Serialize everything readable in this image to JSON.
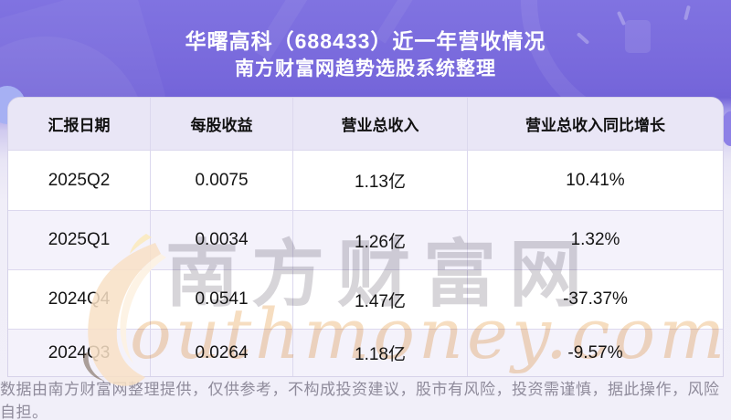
{
  "header": {
    "title": "华曙高科（688433）近一年营收情况",
    "subtitle": "南方财富网趋势选股系统整理"
  },
  "chart_data": {
    "type": "table",
    "title": "华曙高科（688433）近一年营收情况",
    "subtitle": "南方财富网趋势选股系统整理",
    "columns": [
      "汇报日期",
      "每股收益",
      "营业总收入",
      "营业总收入同比增长"
    ],
    "rows": [
      [
        "2025Q2",
        "0.0075",
        "1.13亿",
        "10.41%"
      ],
      [
        "2025Q1",
        "0.0034",
        "1.26亿",
        "1.32%"
      ],
      [
        "2024Q4",
        "0.0541",
        "1.47亿",
        "-37.37%"
      ],
      [
        "2024Q3",
        "0.0264",
        "1.18亿",
        "-9.57%"
      ]
    ]
  },
  "watermark": {
    "cn": "南方财富网",
    "en_script": "outhmoney.com"
  },
  "footer": {
    "disclaimer": "数据由南方财富网整理提供，仅供参考，不构成投资建议，股市有风险，投资需谨慎，据此操作，风险自担。"
  },
  "colors": {
    "hero_purple": "#7566da",
    "header_row_bg": "#e9e6f6",
    "row_alt_bg": "#f4f2fb",
    "row_bg": "#ffffff",
    "grid_border": "#dcd8ee",
    "title_text": "#ffffff",
    "cell_text": "#141414",
    "footer_text": "#8f8b9b",
    "watermark_gray": "#8f8b97",
    "watermark_orange": "#eec18c",
    "swoosh_peach": "#f8e1c6"
  }
}
